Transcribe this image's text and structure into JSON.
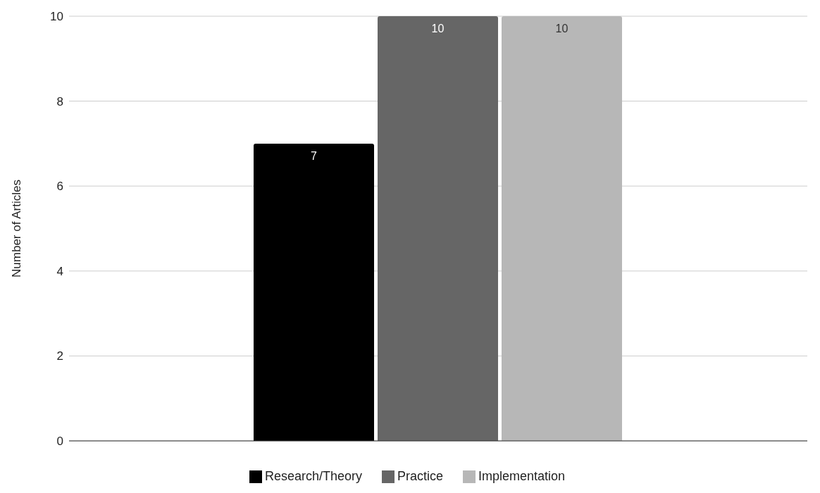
{
  "chart_data": {
    "type": "bar",
    "ylabel": "Number of Articles",
    "categories": [
      null
    ],
    "series": [
      {
        "name": "Research/Theory",
        "color": "#000000",
        "values": [
          7
        ]
      },
      {
        "name": "Practice",
        "color": "#666666",
        "values": [
          10
        ]
      },
      {
        "name": "Implementation",
        "color": "#b7b7b7",
        "values": [
          10
        ]
      }
    ],
    "ylim": [
      0,
      10
    ],
    "yticks": [
      0,
      2,
      4,
      6,
      8,
      10
    ],
    "grid": "y",
    "legend": "bottom",
    "data_labels": true
  }
}
